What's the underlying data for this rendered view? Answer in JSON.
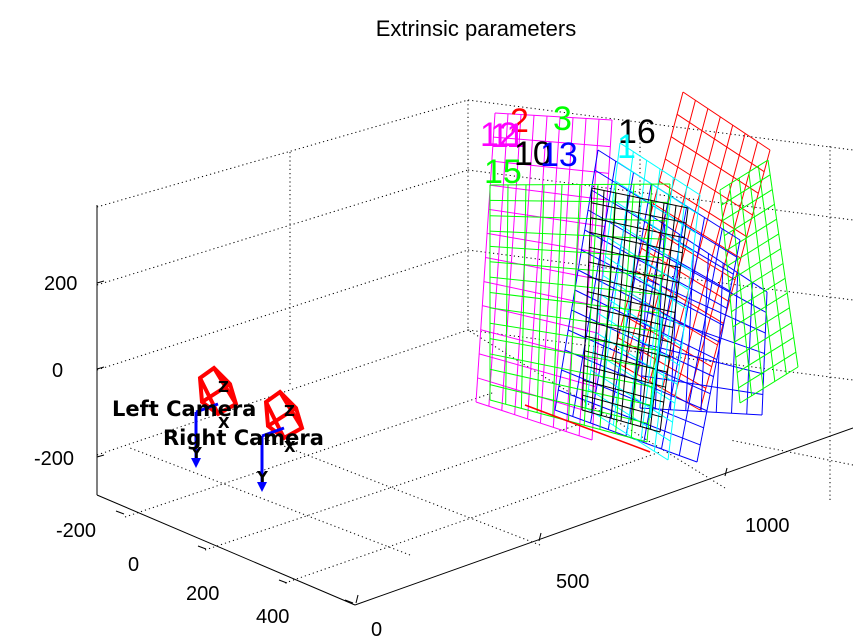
{
  "chart_data": {
    "type": "scatter",
    "title": "Extrinsic parameters",
    "axes": {
      "x": {
        "ticks": [
          -200,
          0,
          200,
          400
        ],
        "tick_labels": [
          "-200",
          "0",
          "200",
          "400"
        ]
      },
      "y": {
        "ticks": [
          0,
          500,
          1000
        ],
        "tick_labels": [
          "0",
          "500",
          "1000"
        ]
      },
      "z": {
        "ticks": [
          -200,
          0,
          200
        ],
        "tick_labels": [
          "-200",
          "0",
          "200"
        ]
      }
    },
    "grid": true,
    "cameras": [
      {
        "label": "Left Camera",
        "axis_letters": [
          "Z",
          "X",
          "Y"
        ]
      },
      {
        "label": "Right Camera",
        "axis_letters": [
          "Z",
          "X",
          "Y"
        ]
      }
    ],
    "boards": [
      {
        "label": "2",
        "color": "#ff0000"
      },
      {
        "label": "3",
        "color": "#00ff00"
      },
      {
        "label": "16",
        "color": "#000000"
      },
      {
        "label": "12",
        "color": "#ff00ff"
      },
      {
        "label": "11",
        "color": "#ff00ff"
      },
      {
        "label": "10",
        "color": "#000000"
      },
      {
        "label": "13",
        "color": "#0000ff"
      },
      {
        "label": "1",
        "color": "#00ffff"
      },
      {
        "label": "15",
        "color": "#00ff00"
      }
    ]
  },
  "colors": {
    "red": "#ff0000",
    "green": "#00ff00",
    "blue": "#0000ff",
    "magenta": "#ff00ff",
    "cyan": "#00ffff",
    "black": "#000000"
  }
}
